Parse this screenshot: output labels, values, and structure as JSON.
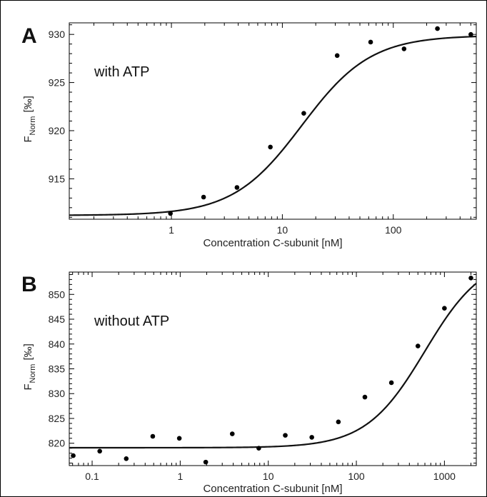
{
  "chart_data": [
    {
      "panel": "A",
      "type": "scatter",
      "annotation": "with ATP",
      "xlabel": "Concentration C-subunit [nM]",
      "ylabel_main": "F",
      "ylabel_sub": "Norm",
      "ylabel_unit": "[‰]",
      "xscale": "log",
      "xlim": [
        0.12,
        560
      ],
      "ylim": [
        910.8,
        931.2
      ],
      "xticks": [
        1,
        10,
        100
      ],
      "xtick_labels": [
        "1",
        "10",
        "100"
      ],
      "yticks": [
        915,
        920,
        925,
        930
      ],
      "ytick_labels": [
        "915",
        "920",
        "925",
        "930"
      ],
      "grid": false,
      "series": [
        {
          "x": [
            0.98,
            1.95,
            3.9,
            7.8,
            15.6,
            31.2,
            62.5,
            125,
            250,
            500
          ],
          "y": [
            911.4,
            913.1,
            914.1,
            918.3,
            921.8,
            927.8,
            929.2,
            928.5,
            930.6,
            930.0
          ]
        }
      ],
      "fit": {
        "bottom": 911.2,
        "top": 929.9,
        "ec50": 15.0,
        "hill": 1.4
      }
    },
    {
      "panel": "B",
      "type": "scatter",
      "annotation": "without ATP",
      "xlabel": "Concentration C-subunit [nM]",
      "ylabel_main": "F",
      "ylabel_sub": "Norm",
      "ylabel_unit": "[‰]",
      "xscale": "log",
      "xlim": [
        0.055,
        2300
      ],
      "ylim": [
        815.5,
        854.5
      ],
      "xticks": [
        0.1,
        1,
        10,
        100,
        1000
      ],
      "xtick_labels": [
        "0.1",
        "1",
        "10",
        "100",
        "1000"
      ],
      "yticks": [
        820,
        825,
        830,
        835,
        840,
        845,
        850
      ],
      "ytick_labels": [
        "820",
        "825",
        "830",
        "835",
        "840",
        "845",
        "850"
      ],
      "grid": false,
      "series": [
        {
          "x": [
            0.061,
            0.122,
            0.244,
            0.488,
            0.977,
            1.95,
            3.9,
            7.8,
            15.6,
            31.2,
            62.5,
            125,
            250,
            500,
            1000,
            2000
          ],
          "y": [
            817.5,
            818.4,
            816.9,
            821.4,
            821.0,
            816.2,
            821.9,
            819.0,
            821.6,
            821.2,
            824.3,
            829.3,
            832.2,
            839.6,
            847.2,
            853.3
          ]
        }
      ],
      "fit": {
        "bottom": 819.1,
        "top": 858.0,
        "ec50": 600.0,
        "hill": 1.3
      }
    }
  ]
}
